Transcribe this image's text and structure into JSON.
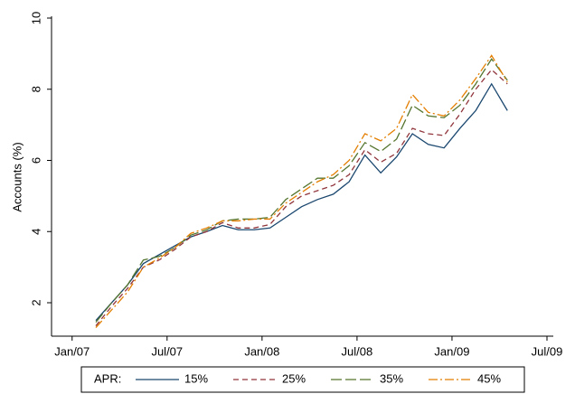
{
  "chart_data": {
    "type": "line",
    "ylabel": "Accounts (%)",
    "legend_title": "APR:",
    "legend_position": "bottom",
    "x": [
      1.5,
      2.5,
      3.5,
      4.5,
      5.5,
      6.5,
      7.5,
      8.5,
      9.5,
      10.5,
      11.5,
      12.5,
      13.5,
      14.5,
      15.5,
      16.5,
      17.5,
      18.5,
      19.5,
      20.5,
      21.5,
      22.5,
      23.5,
      24.5,
      25.5,
      26.5,
      27.5
    ],
    "xlim": [
      -1.3,
      30.4
    ],
    "xticks": [
      {
        "value": 0,
        "label": "Jan/07"
      },
      {
        "value": 6,
        "label": "Jul/07"
      },
      {
        "value": 12,
        "label": "Jan/08"
      },
      {
        "value": 18,
        "label": "Jul/08"
      },
      {
        "value": 24,
        "label": "Jan/09"
      },
      {
        "value": 30,
        "label": "Jul/09"
      }
    ],
    "ylim": [
      1.06,
      10
    ],
    "yticks": [
      2,
      4,
      6,
      8,
      10
    ],
    "series": [
      {
        "name": "15%",
        "color": "#1a476f",
        "dash": "none",
        "values": [
          1.5,
          2.0,
          2.5,
          3.1,
          3.35,
          3.6,
          3.85,
          4.0,
          4.17,
          4.05,
          4.05,
          4.1,
          4.4,
          4.7,
          4.9,
          5.05,
          5.4,
          6.15,
          5.65,
          6.1,
          6.75,
          6.45,
          6.35,
          6.9,
          7.4,
          8.15,
          7.4
        ]
      },
      {
        "name": "25%",
        "color": "#90353b",
        "dash": "6,4",
        "values": [
          1.35,
          1.9,
          2.4,
          3.0,
          3.2,
          3.5,
          3.85,
          4.0,
          4.25,
          4.1,
          4.1,
          4.2,
          4.7,
          5.0,
          5.15,
          5.3,
          5.6,
          6.3,
          5.95,
          6.2,
          6.9,
          6.75,
          6.7,
          7.3,
          8.0,
          8.55,
          8.15
        ]
      },
      {
        "name": "35%",
        "color": "#55752f",
        "dash": "12,4",
        "values": [
          1.45,
          2.0,
          2.5,
          3.2,
          3.3,
          3.55,
          3.9,
          4.05,
          4.3,
          4.35,
          4.35,
          4.4,
          4.9,
          5.2,
          5.5,
          5.5,
          5.85,
          6.5,
          6.25,
          6.6,
          7.55,
          7.25,
          7.2,
          7.55,
          8.15,
          8.85,
          8.25
        ]
      },
      {
        "name": "45%",
        "color": "#e37e00",
        "dash": "10,3,2,3",
        "values": [
          1.3,
          1.8,
          2.3,
          3.0,
          3.25,
          3.55,
          3.95,
          4.1,
          4.3,
          4.3,
          4.35,
          4.35,
          4.8,
          5.1,
          5.4,
          5.6,
          6.0,
          6.75,
          6.55,
          6.9,
          7.85,
          7.35,
          7.25,
          7.7,
          8.3,
          8.95,
          8.2
        ]
      }
    ]
  }
}
